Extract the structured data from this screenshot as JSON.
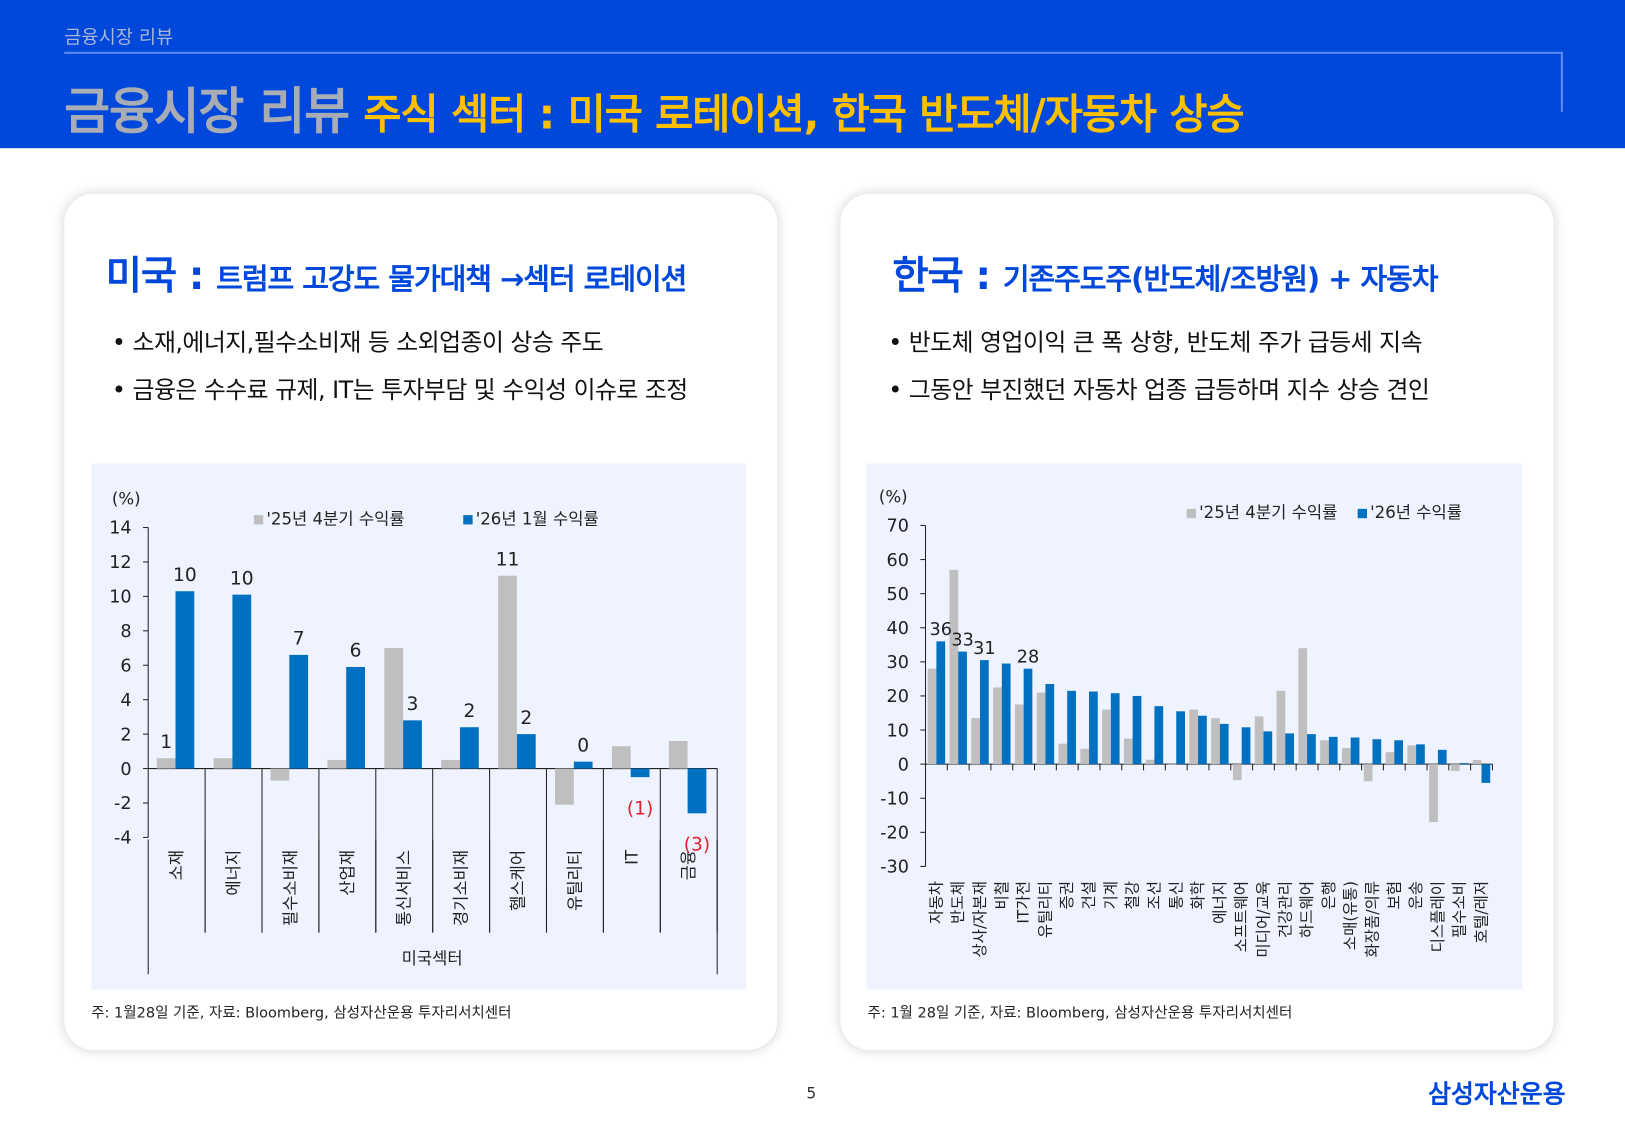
{
  "header": {
    "breadcrumb": "금융시장 리뷰",
    "title": "금융시장 리뷰",
    "subtitle": "주식 섹터 : 미국 로테이션, 한국 반도체/자동차 상승"
  },
  "colors": {
    "header_bg": "#0047db",
    "accent_yellow": "#ffc000",
    "series_2025": "#bfbfbf",
    "series_2026": "#0070c0",
    "negative_label": "#e0202a",
    "chart_bg": "#eef3ff"
  },
  "us": {
    "title_main": "미국 :",
    "title_sub": "트럼프 고강도 물가대책 →섹터 로테이션",
    "bullets": [
      "• 소재,에너지,필수소비재 등 소외업종이 상승 주도",
      "• 금융은 수수료 규제, IT는 투자부담 및 수익성 이슈로 조정"
    ],
    "note": "주: 1월28일 기준, 자료: Bloomberg, 삼성자산운용 투자리서치센터"
  },
  "kr": {
    "title_main": "한국 :",
    "title_sub": "기존주도주(반도체/조방원) + 자동차",
    "bullets": [
      "• 반도체 영업이익 큰 폭 상향, 반도체 주가 급등세 지속",
      "• 그동안 부진했던 자동차 업종 급등하며 지수 상승 견인"
    ],
    "note": "주: 1월 28일 기준, 자료: Bloomberg, 삼성자산운용 투자리서치센터"
  },
  "chart_data": [
    {
      "type": "bar",
      "ylabel": "(%)",
      "xlabel": "미국섹터",
      "ylim": [
        -4,
        14
      ],
      "yticks": [
        14,
        12,
        10,
        8,
        6,
        4,
        2,
        0,
        -2,
        -4
      ],
      "legend_position": "top",
      "categories": [
        "소재",
        "에너지",
        "필수소비재",
        "산업재",
        "통신서비스",
        "경기소비재",
        "헬스케어",
        "유틸리티",
        "IT",
        "금융"
      ],
      "series": [
        {
          "name": "'25년 4분기 수익률",
          "values": [
            0.6,
            0.6,
            -0.7,
            0.5,
            7.0,
            0.5,
            11.2,
            -2.1,
            1.3,
            1.6
          ]
        },
        {
          "name": "'26년 1월 수익률",
          "values": [
            10.3,
            10.1,
            6.6,
            5.9,
            2.8,
            2.4,
            2.0,
            0.4,
            -0.5,
            -2.6
          ]
        }
      ],
      "data_labels": [
        {
          "category": "소재",
          "series": 0,
          "text": "1"
        },
        {
          "category": "소재",
          "series": 1,
          "text": "10"
        },
        {
          "category": "에너지",
          "series": 1,
          "text": "10"
        },
        {
          "category": "필수소비재",
          "series": 1,
          "text": "7"
        },
        {
          "category": "산업재",
          "series": 1,
          "text": "6"
        },
        {
          "category": "통신서비스",
          "series": 1,
          "text": "3"
        },
        {
          "category": "경기소비재",
          "series": 1,
          "text": "2"
        },
        {
          "category": "헬스케어",
          "series": 0,
          "text": "11"
        },
        {
          "category": "헬스케어",
          "series": 1,
          "text": "2"
        },
        {
          "category": "유틸리티",
          "series": 1,
          "text": "0"
        },
        {
          "category": "IT",
          "series": 1,
          "text": "(1)"
        },
        {
          "category": "금융",
          "series": 1,
          "text": "(3)"
        }
      ]
    },
    {
      "type": "bar",
      "ylabel": "(%)",
      "ylim": [
        -30,
        70
      ],
      "yticks": [
        70,
        60,
        50,
        40,
        30,
        20,
        10,
        0,
        -10,
        -20,
        -30
      ],
      "legend_position": "top-right",
      "categories": [
        "자동차",
        "반도체",
        "상사/자본재",
        "비철",
        "IT가전",
        "유틸리티",
        "증권",
        "건설",
        "기계",
        "철강",
        "조선",
        "통신",
        "화학",
        "에너지",
        "소프트웨어",
        "미디어/교육",
        "건강관리",
        "하드웨어",
        "은행",
        "소매(유통)",
        "화장품/의류",
        "보험",
        "운송",
        "디스플레이",
        "필수소비",
        "호텔/레저"
      ],
      "series": [
        {
          "name": "'25년 4분기 수익률",
          "values": [
            28,
            57,
            13.5,
            22.5,
            17.5,
            21,
            6,
            4.5,
            16,
            7.5,
            1.3,
            0,
            16,
            13.5,
            -4.7,
            14,
            21.5,
            34,
            7,
            4.7,
            -5,
            3.5,
            5.5,
            -17,
            -2,
            1.2
          ]
        },
        {
          "name": "'26년 수익률",
          "values": [
            36,
            33,
            30.5,
            29.5,
            28,
            23.5,
            21.5,
            21.3,
            20.8,
            20,
            17,
            15.5,
            14.2,
            11.8,
            10.8,
            9.6,
            9,
            8.8,
            8,
            7.8,
            7.3,
            7,
            5.8,
            4.2,
            0.3,
            -5.5
          ]
        }
      ],
      "data_labels": [
        {
          "category": "자동차",
          "series": 1,
          "text": "36"
        },
        {
          "category": "반도체",
          "series": 1,
          "text": "33"
        },
        {
          "category": "상사/자본재",
          "series": 1,
          "text": "31"
        },
        {
          "category": "IT가전",
          "series": 1,
          "text": "28"
        }
      ]
    }
  ],
  "footer": {
    "page": "5",
    "logo": "삼성자산운용"
  }
}
